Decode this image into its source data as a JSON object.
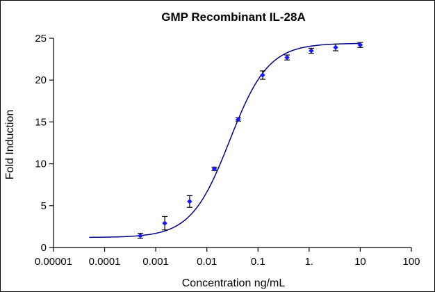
{
  "chart_data": {
    "type": "scatter",
    "title": "GMP Recombinant IL-28A",
    "xlabel": "Concentration ng/mL",
    "ylabel": "Fold Induction",
    "x_scale": "log",
    "xlim": [
      1e-05,
      100
    ],
    "ylim": [
      0,
      25
    ],
    "x_tick_labels": [
      "0.00001",
      "0.0001",
      "0.001",
      "0.01",
      "0.1",
      "1.",
      "10",
      "100"
    ],
    "x_tick_values": [
      1e-05,
      0.0001,
      0.001,
      0.01,
      0.1,
      1,
      10,
      100
    ],
    "y_tick_labels": [
      "0",
      "5",
      "10",
      "15",
      "20",
      "25"
    ],
    "y_tick_values": [
      0,
      5,
      10,
      15,
      20,
      25
    ],
    "grid": false,
    "series": [
      {
        "marker_color": "#1a1aff",
        "line_color": "#00008b",
        "points": [
          {
            "x": 0.0005,
            "y": 1.4,
            "err": 0.3
          },
          {
            "x": 0.0015,
            "y": 2.9,
            "err": 0.8
          },
          {
            "x": 0.0046,
            "y": 5.5,
            "err": 0.7
          },
          {
            "x": 0.014,
            "y": 9.4,
            "err": 0.2
          },
          {
            "x": 0.041,
            "y": 15.3,
            "err": 0.2
          },
          {
            "x": 0.123,
            "y": 20.6,
            "err": 0.5
          },
          {
            "x": 0.37,
            "y": 22.7,
            "err": 0.3
          },
          {
            "x": 1.1,
            "y": 23.5,
            "err": 0.3
          },
          {
            "x": 3.3,
            "y": 23.9,
            "err": 0.4
          },
          {
            "x": 10,
            "y": 24.2,
            "err": 0.3
          }
        ],
        "fit": {
          "model": "4PL",
          "bottom": 1.2,
          "top": 24.4,
          "ec50": 0.028,
          "hill": 1.15,
          "x_start": 5e-05,
          "x_end": 10
        }
      }
    ]
  }
}
